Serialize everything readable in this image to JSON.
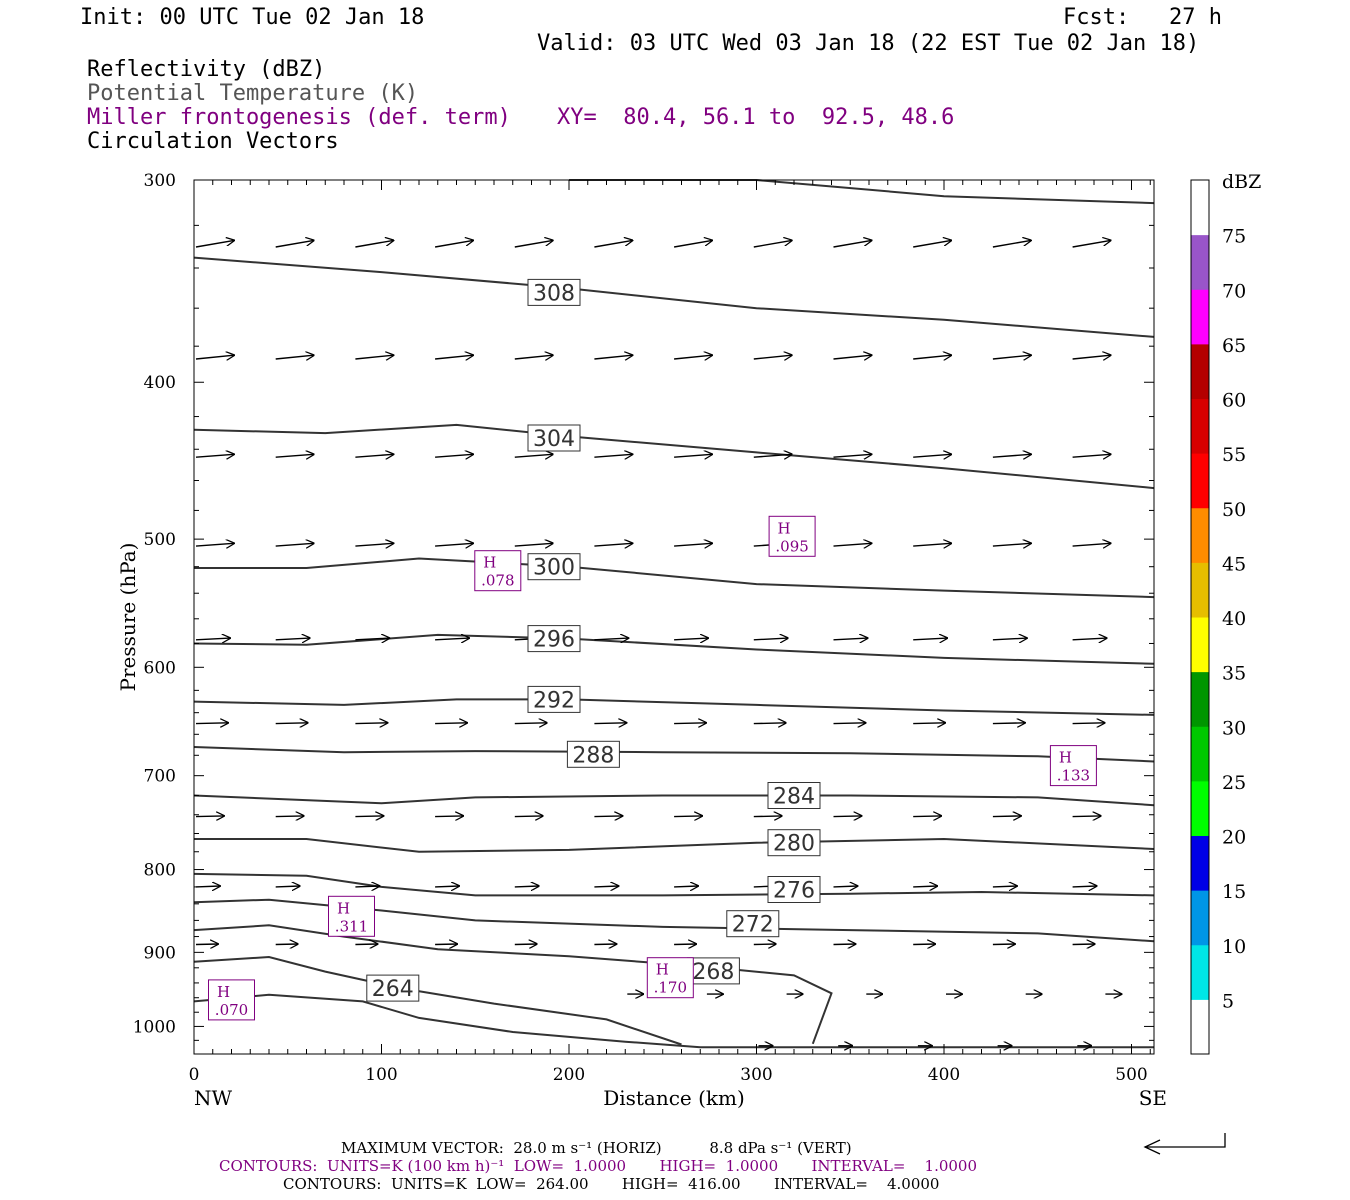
{
  "header": {
    "init": "Init: 00 UTC Tue 02 Jan 18",
    "fcst": "Fcst:   27 h",
    "valid": "Valid: 03 UTC Wed 03 Jan 18 (22 EST Tue 02 Jan 18)",
    "field1": "Reflectivity (dBZ)",
    "field2": "Potential Temperature (K)",
    "field3": "Miller frontogenesis (def. term)",
    "xy": "XY=  80.4, 56.1 to  92.5, 48.6",
    "field4": "Circulation Vectors"
  },
  "colors": {
    "purple": "#800080",
    "theta_line": "#333333",
    "text_gray": "#555555"
  },
  "chart_data": {
    "type": "cross-section",
    "xlabel": "Distance (km)",
    "ylabel": "Pressure (hPa)",
    "x_range": [
      0,
      512
    ],
    "y_range": [
      300,
      1040
    ],
    "y_scale": "log-pressure",
    "x_ticks": [
      0,
      100,
      200,
      300,
      400,
      500
    ],
    "x_tick_labels": [
      "0",
      "100",
      "200",
      "300",
      "400",
      "500"
    ],
    "y_ticks": [
      300,
      400,
      500,
      600,
      700,
      800,
      900,
      1000
    ],
    "y_tick_labels": [
      "300",
      "400",
      "500",
      "600",
      "700",
      "800",
      "900",
      "1000"
    ],
    "endpoint_labels": {
      "left": "NW",
      "right": "SE"
    },
    "colorbar": {
      "title": "dBZ",
      "levels": [
        "5",
        "10",
        "15",
        "20",
        "25",
        "30",
        "35",
        "40",
        "45",
        "50",
        "55",
        "60",
        "65",
        "70",
        "75"
      ],
      "colors": [
        "#ffffff",
        "#00e6e6",
        "#0096e6",
        "#0000e6",
        "#00ff00",
        "#00c800",
        "#009600",
        "#ffff00",
        "#e6be00",
        "#ff8c00",
        "#ff0000",
        "#d70000",
        "#b40000",
        "#ff00ff",
        "#9955c9",
        "#ffffff"
      ]
    },
    "theta_contours": [
      {
        "label": "308",
        "label_at": [
          192,
          352
        ],
        "points": [
          [
            0,
            335
          ],
          [
            100,
            342
          ],
          [
            200,
            350
          ],
          [
            300,
            360
          ],
          [
            400,
            366
          ],
          [
            512,
            375
          ]
        ]
      },
      {
        "label": null,
        "points": [
          [
            200,
            300
          ],
          [
            300,
            300
          ],
          [
            400,
            307
          ],
          [
            512,
            310
          ]
        ]
      },
      {
        "label": "304",
        "label_at": [
          192,
          433
        ],
        "points": [
          [
            0,
            428
          ],
          [
            70,
            430
          ],
          [
            140,
            425
          ],
          [
            200,
            432
          ],
          [
            300,
            442
          ],
          [
            400,
            452
          ],
          [
            512,
            465
          ]
        ]
      },
      {
        "label": "300",
        "label_at": [
          192,
          520
        ],
        "points": [
          [
            0,
            521
          ],
          [
            60,
            521
          ],
          [
            120,
            514
          ],
          [
            200,
            520
          ],
          [
            300,
            533
          ],
          [
            400,
            538
          ],
          [
            512,
            543
          ]
        ]
      },
      {
        "label": "296",
        "label_at": [
          192,
          576
        ],
        "points": [
          [
            0,
            580
          ],
          [
            60,
            581
          ],
          [
            130,
            573
          ],
          [
            200,
            576
          ],
          [
            300,
            585
          ],
          [
            400,
            592
          ],
          [
            512,
            597
          ]
        ]
      },
      {
        "label": "292",
        "label_at": [
          192,
          628
        ],
        "points": [
          [
            0,
            630
          ],
          [
            80,
            633
          ],
          [
            140,
            628
          ],
          [
            200,
            628
          ],
          [
            300,
            633
          ],
          [
            400,
            638
          ],
          [
            512,
            642
          ]
        ]
      },
      {
        "label": "288",
        "label_at": [
          213,
          679
        ],
        "points": [
          [
            0,
            672
          ],
          [
            80,
            677
          ],
          [
            150,
            676
          ],
          [
            250,
            677
          ],
          [
            350,
            678
          ],
          [
            450,
            681
          ],
          [
            512,
            686
          ]
        ]
      },
      {
        "label": "284",
        "label_at": [
          320,
          720
        ],
        "points": [
          [
            0,
            720
          ],
          [
            100,
            728
          ],
          [
            150,
            722
          ],
          [
            250,
            720
          ],
          [
            350,
            720
          ],
          [
            450,
            722
          ],
          [
            512,
            730
          ]
        ]
      },
      {
        "label": "280",
        "label_at": [
          320,
          770
        ],
        "points": [
          [
            0,
            766
          ],
          [
            60,
            766
          ],
          [
            120,
            780
          ],
          [
            200,
            778
          ],
          [
            300,
            770
          ],
          [
            400,
            766
          ],
          [
            512,
            777
          ]
        ]
      },
      {
        "label": "276",
        "label_at": [
          320,
          823
        ],
        "points": [
          [
            0,
            805
          ],
          [
            60,
            807
          ],
          [
            100,
            820
          ],
          [
            150,
            830
          ],
          [
            250,
            830
          ],
          [
            350,
            828
          ],
          [
            420,
            826
          ],
          [
            512,
            830
          ]
        ]
      },
      {
        "label": "272",
        "label_at": [
          298,
          864
        ],
        "points": [
          [
            0,
            838
          ],
          [
            40,
            835
          ],
          [
            100,
            848
          ],
          [
            150,
            860
          ],
          [
            250,
            868
          ],
          [
            350,
            872
          ],
          [
            450,
            876
          ],
          [
            512,
            886
          ]
        ]
      },
      {
        "label": "268",
        "label_at": [
          277,
          924
        ],
        "points": [
          [
            0,
            872
          ],
          [
            40,
            866
          ],
          [
            80,
            880
          ],
          [
            130,
            896
          ],
          [
            200,
            905
          ],
          [
            270,
            918
          ],
          [
            320,
            930
          ],
          [
            340,
            954
          ],
          [
            330,
            1025
          ]
        ]
      },
      {
        "label": "264",
        "label_at": [
          106,
          947
        ],
        "points": [
          [
            0,
            912
          ],
          [
            40,
            906
          ],
          [
            70,
            925
          ],
          [
            110,
            947
          ],
          [
            160,
            968
          ],
          [
            220,
            990
          ],
          [
            260,
            1026
          ]
        ]
      },
      {
        "label": null,
        "points": [
          [
            0,
            965
          ],
          [
            40,
            956
          ],
          [
            90,
            965
          ],
          [
            120,
            988
          ],
          [
            170,
            1008
          ],
          [
            230,
            1022
          ],
          [
            270,
            1030
          ],
          [
            512,
            1030
          ]
        ]
      }
    ],
    "frontogenesis_maxima": [
      {
        "label": "H",
        "value": ".078",
        "x": 162,
        "y": 523
      },
      {
        "label": "H",
        "value": ".095",
        "x": 319,
        "y": 498
      },
      {
        "label": "H",
        "value": ".133",
        "x": 469,
        "y": 690
      },
      {
        "label": "H",
        "value": ".311",
        "x": 84,
        "y": 855
      },
      {
        "label": "H",
        "value": ".170",
        "x": 254,
        "y": 933
      },
      {
        "label": "H",
        "value": ".070",
        "x": 20,
        "y": 963
      }
    ],
    "vector_rows": [
      {
        "p": 330,
        "x_start": 0,
        "x_end": 512,
        "dx": 42.5,
        "len": 38,
        "dy": 0.014
      },
      {
        "p": 387,
        "x_start": 0,
        "x_end": 512,
        "dx": 42.5,
        "len": 38,
        "dy": 0.008
      },
      {
        "p": 445,
        "x_start": 0,
        "x_end": 512,
        "dx": 42.5,
        "len": 38,
        "dy": 0.006
      },
      {
        "p": 505,
        "x_start": 0,
        "x_end": 512,
        "dx": 42.5,
        "len": 38,
        "dy": 0.006
      },
      {
        "p": 577,
        "x_start": 0,
        "x_end": 512,
        "dx": 42.5,
        "len": 34,
        "dy": 0.004
      },
      {
        "p": 650,
        "x_start": 0,
        "x_end": 512,
        "dx": 42.5,
        "len": 32,
        "dy": 0.002
      },
      {
        "p": 742,
        "x_start": 0,
        "x_end": 512,
        "dx": 42.5,
        "len": 28,
        "dy": 0.002
      },
      {
        "p": 820,
        "x_start": 0,
        "x_end": 512,
        "dx": 42.5,
        "len": 24,
        "dy": 0.003
      },
      {
        "p": 890,
        "x_start": 0,
        "x_end": 512,
        "dx": 42.5,
        "len": 22,
        "dy": 0.002
      },
      {
        "p": 955,
        "x_start": 230,
        "x_end": 512,
        "dx": 42.5,
        "len": 16,
        "dy": 0.0
      },
      {
        "p": 1028,
        "x_start": 300,
        "x_end": 512,
        "dx": 42.5,
        "len": 14,
        "dy": 0.0
      }
    ]
  },
  "footer": {
    "max_vector": "MAXIMUM VECTOR:  28.0 m s⁻¹ (HORIZ)          8.8 dPa s⁻¹ (VERT)",
    "contours_purple": "CONTOURS:  UNITS=K (100 km h)⁻¹  LOW=  1.0000       HIGH=  1.0000       INTERVAL=    1.0000",
    "contours_black": "CONTOURS:  UNITS=K  LOW=  264.00       HIGH=  416.00       INTERVAL=    4.0000"
  }
}
